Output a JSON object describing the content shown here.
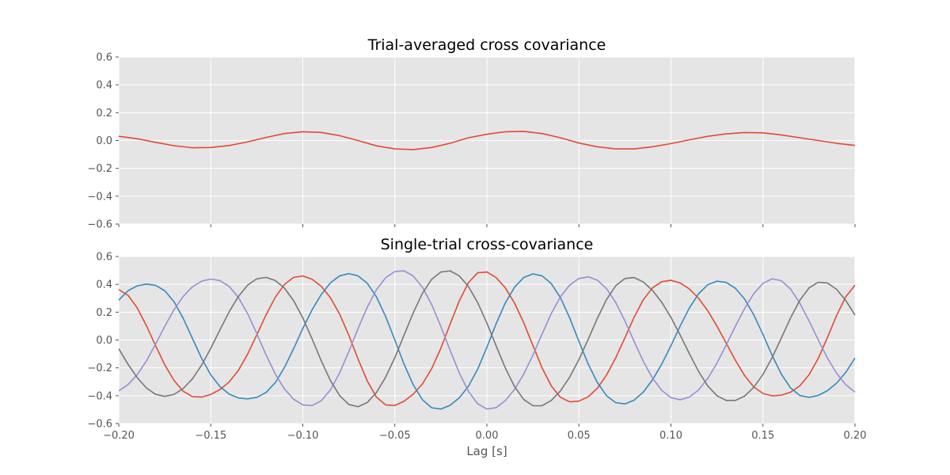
{
  "chart_data": [
    {
      "type": "line",
      "title": "Trial-averaged cross covariance",
      "xlabel": "",
      "ylabel": "",
      "xlim": [
        -0.2,
        0.2
      ],
      "ylim": [
        -0.6,
        0.6
      ],
      "xticks": [
        -0.2,
        -0.15,
        -0.1,
        -0.05,
        0.0,
        0.05,
        0.1,
        0.15,
        0.2
      ],
      "yticks": [
        -0.6,
        -0.4,
        -0.2,
        0.0,
        0.2,
        0.4,
        0.6
      ],
      "ytick_labels": [
        "−0.6",
        "−0.4",
        "−0.2",
        "0.0",
        "0.2",
        "0.4",
        "0.6"
      ],
      "grid": true,
      "background": "#e5e5e5",
      "series": [
        {
          "color": "#e24a33",
          "x": [
            -0.2,
            -0.19,
            -0.18,
            -0.17,
            -0.16,
            -0.15,
            -0.14,
            -0.13,
            -0.12,
            -0.11,
            -0.1,
            -0.09,
            -0.08,
            -0.07,
            -0.06,
            -0.05,
            -0.04,
            -0.03,
            -0.02,
            -0.01,
            0.0,
            0.01,
            0.02,
            0.03,
            0.04,
            0.05,
            0.06,
            0.07,
            0.08,
            0.09,
            0.1,
            0.11,
            0.12,
            0.13,
            0.14,
            0.15,
            0.16,
            0.17,
            0.18,
            0.19,
            0.2
          ],
          "y": [
            0.03,
            0.013,
            -0.013,
            -0.037,
            -0.052,
            -0.05,
            -0.036,
            -0.01,
            0.022,
            0.05,
            0.063,
            0.058,
            0.035,
            0.0,
            -0.038,
            -0.06,
            -0.065,
            -0.05,
            -0.02,
            0.02,
            0.045,
            0.063,
            0.066,
            0.05,
            0.02,
            -0.018,
            -0.045,
            -0.06,
            -0.06,
            -0.045,
            -0.022,
            0.005,
            0.03,
            0.048,
            0.057,
            0.055,
            0.04,
            0.02,
            0.0,
            -0.02,
            -0.035
          ]
        }
      ]
    },
    {
      "type": "line",
      "title": "Single-trial cross-covariance",
      "xlabel": "Lag [s]",
      "ylabel": "",
      "xlim": [
        -0.2,
        0.2
      ],
      "ylim": [
        -0.6,
        0.6
      ],
      "xticks": [
        -0.2,
        -0.15,
        -0.1,
        -0.05,
        0.0,
        0.05,
        0.1,
        0.15,
        0.2
      ],
      "xtick_labels": [
        "−0.20",
        "−0.15",
        "−0.10",
        "−0.05",
        "0.00",
        "0.05",
        "0.10",
        "0.15",
        "0.20"
      ],
      "yticks": [
        -0.6,
        -0.4,
        -0.2,
        0.0,
        0.2,
        0.4,
        0.6
      ],
      "ytick_labels": [
        "−0.6",
        "−0.4",
        "−0.2",
        "0.0",
        "0.2",
        "0.4",
        "0.6"
      ],
      "grid": true,
      "background": "#e5e5e5",
      "series": [
        {
          "color": "#e24a33",
          "x": [
            -0.2,
            -0.195,
            -0.19,
            -0.185,
            -0.18,
            -0.175,
            -0.17,
            -0.165,
            -0.16,
            -0.155,
            -0.15,
            -0.145,
            -0.14,
            -0.135,
            -0.13,
            -0.125,
            -0.12,
            -0.115,
            -0.11,
            -0.105,
            -0.1,
            -0.095,
            -0.09,
            -0.085,
            -0.08,
            -0.075,
            -0.07,
            -0.065,
            -0.06,
            -0.055,
            -0.05,
            -0.045,
            -0.04,
            -0.035,
            -0.03,
            -0.025,
            -0.02,
            -0.015,
            -0.01,
            -0.005,
            0.0,
            0.005,
            0.01,
            0.015,
            0.02,
            0.025,
            0.03,
            0.035,
            0.04,
            0.045,
            0.05,
            0.055,
            0.06,
            0.065,
            0.07,
            0.075,
            0.08,
            0.085,
            0.09,
            0.095,
            0.1,
            0.105,
            0.11,
            0.115,
            0.12,
            0.125,
            0.13,
            0.135,
            0.14,
            0.145,
            0.15,
            0.155,
            0.16,
            0.165,
            0.17,
            0.175,
            0.18,
            0.185,
            0.19,
            0.195,
            0.2
          ],
          "y": [
            0.362,
            0.322,
            0.232,
            0.104,
            -0.04,
            -0.178,
            -0.29,
            -0.368,
            -0.406,
            -0.41,
            -0.391,
            -0.356,
            -0.301,
            -0.218,
            -0.102,
            0.037,
            0.18,
            0.306,
            0.399,
            0.45,
            0.46,
            0.437,
            0.386,
            0.304,
            0.186,
            0.034,
            -0.136,
            -0.294,
            -0.41,
            -0.466,
            -0.47,
            -0.44,
            -0.389,
            -0.315,
            -0.206,
            -0.059,
            0.113,
            0.281,
            0.413,
            0.483,
            0.489,
            0.449,
            0.375,
            0.266,
            0.125,
            -0.039,
            -0.2,
            -0.33,
            -0.412,
            -0.444,
            -0.439,
            -0.408,
            -0.347,
            -0.252,
            -0.128,
            0.016,
            0.164,
            0.29,
            0.375,
            0.419,
            0.429,
            0.41,
            0.367,
            0.3,
            0.21,
            0.1,
            -0.022,
            -0.145,
            -0.255,
            -0.337,
            -0.384,
            -0.401,
            -0.396,
            -0.375,
            -0.329,
            -0.25,
            -0.133,
            0.017,
            0.176,
            0.311,
            0.394
          ]
        },
        {
          "color": "#348abd",
          "x": [
            -0.2,
            -0.195,
            -0.19,
            -0.185,
            -0.18,
            -0.175,
            -0.17,
            -0.165,
            -0.16,
            -0.155,
            -0.15,
            -0.145,
            -0.14,
            -0.135,
            -0.13,
            -0.125,
            -0.12,
            -0.115,
            -0.11,
            -0.105,
            -0.1,
            -0.095,
            -0.09,
            -0.085,
            -0.08,
            -0.075,
            -0.07,
            -0.065,
            -0.06,
            -0.055,
            -0.05,
            -0.045,
            -0.04,
            -0.035,
            -0.03,
            -0.025,
            -0.02,
            -0.015,
            -0.01,
            -0.005,
            0.0,
            0.005,
            0.01,
            0.015,
            0.02,
            0.025,
            0.03,
            0.035,
            0.04,
            0.045,
            0.05,
            0.055,
            0.06,
            0.065,
            0.07,
            0.075,
            0.08,
            0.085,
            0.09,
            0.095,
            0.1,
            0.105,
            0.11,
            0.115,
            0.12,
            0.125,
            0.13,
            0.135,
            0.14,
            0.145,
            0.15,
            0.155,
            0.16,
            0.165,
            0.17,
            0.175,
            0.18,
            0.185,
            0.19,
            0.195,
            0.2
          ],
          "y": [
            0.286,
            0.354,
            0.389,
            0.402,
            0.393,
            0.354,
            0.276,
            0.156,
            0.012,
            -0.131,
            -0.25,
            -0.335,
            -0.389,
            -0.416,
            -0.423,
            -0.412,
            -0.377,
            -0.307,
            -0.198,
            -0.062,
            0.083,
            0.216,
            0.327,
            0.411,
            0.461,
            0.477,
            0.461,
            0.408,
            0.31,
            0.169,
            0.0,
            -0.173,
            -0.322,
            -0.429,
            -0.487,
            -0.496,
            -0.469,
            -0.415,
            -0.332,
            -0.21,
            -0.052,
            0.116,
            0.266,
            0.379,
            0.449,
            0.475,
            0.461,
            0.405,
            0.304,
            0.159,
            -0.009,
            -0.171,
            -0.305,
            -0.4,
            -0.45,
            -0.459,
            -0.432,
            -0.374,
            -0.286,
            -0.173,
            -0.041,
            0.1,
            0.23,
            0.332,
            0.397,
            0.423,
            0.414,
            0.372,
            0.295,
            0.181,
            0.04,
            -0.111,
            -0.246,
            -0.344,
            -0.398,
            -0.412,
            -0.398,
            -0.364,
            -0.31,
            -0.232,
            -0.13
          ]
        },
        {
          "color": "#988ed5",
          "x": [
            -0.2,
            -0.195,
            -0.19,
            -0.185,
            -0.18,
            -0.175,
            -0.17,
            -0.165,
            -0.16,
            -0.155,
            -0.15,
            -0.145,
            -0.14,
            -0.135,
            -0.13,
            -0.125,
            -0.12,
            -0.115,
            -0.11,
            -0.105,
            -0.1,
            -0.095,
            -0.09,
            -0.085,
            -0.08,
            -0.075,
            -0.07,
            -0.065,
            -0.06,
            -0.055,
            -0.05,
            -0.045,
            -0.04,
            -0.035,
            -0.03,
            -0.025,
            -0.02,
            -0.015,
            -0.01,
            -0.005,
            0.0,
            0.005,
            0.01,
            0.015,
            0.02,
            0.025,
            0.03,
            0.035,
            0.04,
            0.045,
            0.05,
            0.055,
            0.06,
            0.065,
            0.07,
            0.075,
            0.08,
            0.085,
            0.09,
            0.095,
            0.1,
            0.105,
            0.11,
            0.115,
            0.12,
            0.125,
            0.13,
            0.135,
            0.14,
            0.145,
            0.15,
            0.155,
            0.16,
            0.165,
            0.17,
            0.175,
            0.18,
            0.185,
            0.19,
            0.195,
            0.2
          ],
          "y": [
            -0.365,
            -0.321,
            -0.25,
            -0.151,
            -0.03,
            0.099,
            0.217,
            0.313,
            0.382,
            0.423,
            0.438,
            0.427,
            0.385,
            0.306,
            0.19,
            0.046,
            -0.106,
            -0.243,
            -0.351,
            -0.425,
            -0.466,
            -0.471,
            -0.437,
            -0.358,
            -0.236,
            -0.083,
            0.082,
            0.236,
            0.361,
            0.448,
            0.492,
            0.497,
            0.46,
            0.379,
            0.255,
            0.098,
            -0.073,
            -0.236,
            -0.369,
            -0.458,
            -0.496,
            -0.486,
            -0.436,
            -0.355,
            -0.245,
            -0.109,
            0.044,
            0.191,
            0.311,
            0.395,
            0.442,
            0.454,
            0.43,
            0.369,
            0.269,
            0.137,
            -0.01,
            -0.154,
            -0.274,
            -0.362,
            -0.414,
            -0.429,
            -0.41,
            -0.359,
            -0.276,
            -0.166,
            -0.036,
            0.099,
            0.226,
            0.333,
            0.407,
            0.44,
            0.426,
            0.366,
            0.265,
            0.138,
            0.001,
            -0.129,
            -0.239,
            -0.322,
            -0.374
          ]
        },
        {
          "color": "#777777",
          "x": [
            -0.2,
            -0.195,
            -0.19,
            -0.185,
            -0.18,
            -0.175,
            -0.17,
            -0.165,
            -0.16,
            -0.155,
            -0.15,
            -0.145,
            -0.14,
            -0.135,
            -0.13,
            -0.125,
            -0.12,
            -0.115,
            -0.11,
            -0.105,
            -0.1,
            -0.095,
            -0.09,
            -0.085,
            -0.08,
            -0.075,
            -0.07,
            -0.065,
            -0.06,
            -0.055,
            -0.05,
            -0.045,
            -0.04,
            -0.035,
            -0.03,
            -0.025,
            -0.02,
            -0.015,
            -0.01,
            -0.005,
            0.0,
            0.005,
            0.01,
            0.015,
            0.02,
            0.025,
            0.03,
            0.035,
            0.04,
            0.045,
            0.05,
            0.055,
            0.06,
            0.065,
            0.07,
            0.075,
            0.08,
            0.085,
            0.09,
            0.095,
            0.1,
            0.105,
            0.11,
            0.115,
            0.12,
            0.125,
            0.13,
            0.135,
            0.14,
            0.145,
            0.15,
            0.155,
            0.16,
            0.165,
            0.17,
            0.175,
            0.18,
            0.185,
            0.19,
            0.195,
            0.2
          ],
          "y": [
            -0.063,
            -0.173,
            -0.27,
            -0.344,
            -0.39,
            -0.405,
            -0.391,
            -0.349,
            -0.279,
            -0.181,
            -0.059,
            0.074,
            0.203,
            0.313,
            0.394,
            0.44,
            0.45,
            0.428,
            0.373,
            0.283,
            0.159,
            0.009,
            -0.149,
            -0.291,
            -0.399,
            -0.463,
            -0.479,
            -0.449,
            -0.377,
            -0.267,
            -0.126,
            0.035,
            0.196,
            0.336,
            0.436,
            0.489,
            0.497,
            0.461,
            0.384,
            0.269,
            0.122,
            -0.041,
            -0.2,
            -0.334,
            -0.427,
            -0.472,
            -0.472,
            -0.434,
            -0.365,
            -0.266,
            -0.141,
            0.004,
            0.155,
            0.291,
            0.39,
            0.442,
            0.449,
            0.417,
            0.356,
            0.271,
            0.163,
            0.036,
            -0.098,
            -0.225,
            -0.33,
            -0.4,
            -0.434,
            -0.434,
            -0.403,
            -0.34,
            -0.247,
            -0.126,
            0.015,
            0.159,
            0.285,
            0.374,
            0.415,
            0.41,
            0.364,
            0.284,
            0.179
          ]
        }
      ]
    }
  ]
}
